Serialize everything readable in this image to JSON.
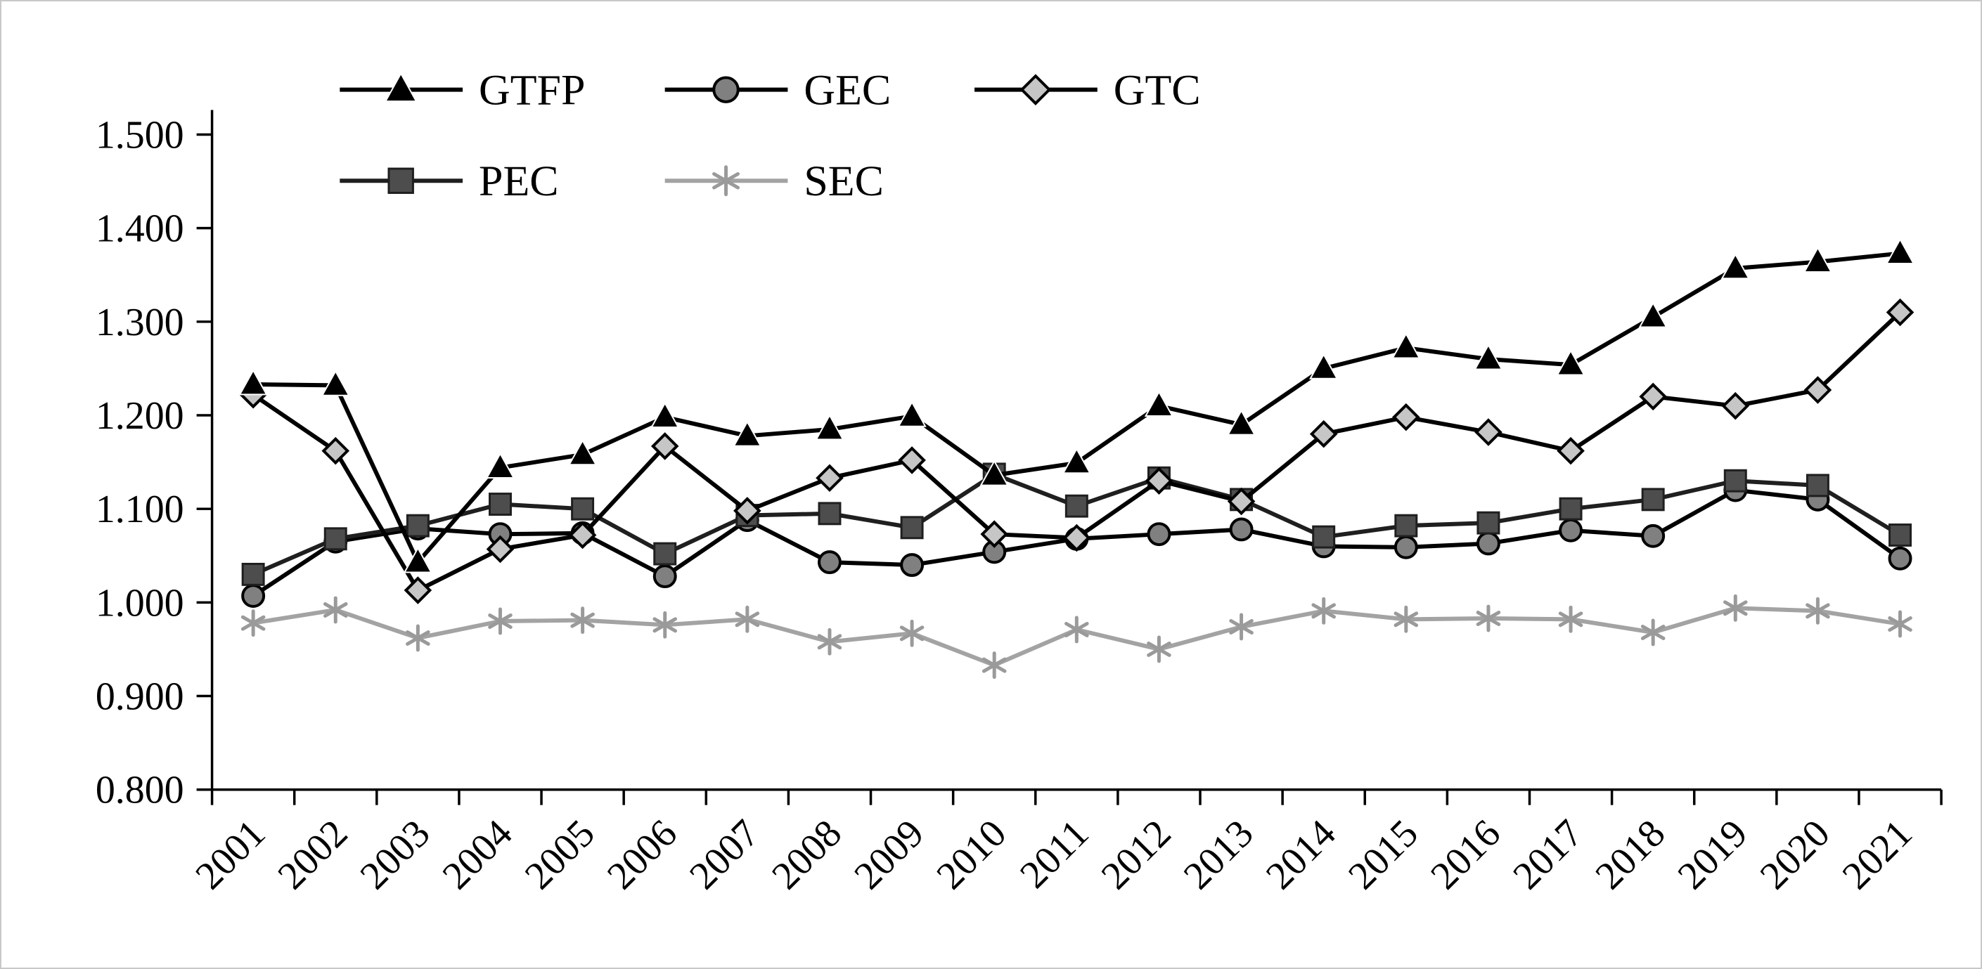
{
  "figure": {
    "title": "",
    "border_color": "#c8c8c8",
    "background_color": "#ffffff"
  },
  "chart_data": {
    "type": "line",
    "title": "",
    "xlabel": "",
    "ylabel": "",
    "grid": false,
    "legend_position": "top",
    "ylim": [
      0.8,
      1.5
    ],
    "ytick_step": 0.1,
    "ytick_labels": [
      "0.800",
      "0.900",
      "1.000",
      "1.100",
      "1.200",
      "1.300",
      "1.400",
      "1.500"
    ],
    "categories": [
      "2001",
      "2002",
      "2003",
      "2004",
      "2005",
      "2006",
      "2007",
      "2008",
      "2009",
      "2010",
      "2011",
      "2012",
      "2013",
      "2014",
      "2015",
      "2016",
      "2017",
      "2018",
      "2019",
      "2020",
      "2021"
    ],
    "series": [
      {
        "name": "GTFP",
        "marker": "triangle",
        "color": "#000000",
        "marker_fill": "#000000",
        "values": [
          1.233,
          1.232,
          1.043,
          1.144,
          1.158,
          1.198,
          1.178,
          1.185,
          1.199,
          1.136,
          1.149,
          1.21,
          1.19,
          1.25,
          1.272,
          1.26,
          1.254,
          1.305,
          1.357,
          1.364,
          1.373
        ]
      },
      {
        "name": "GEC",
        "marker": "circle",
        "color": "#000000",
        "marker_fill": "#808080",
        "values": [
          1.007,
          1.065,
          1.079,
          1.073,
          1.074,
          1.028,
          1.088,
          1.043,
          1.04,
          1.054,
          1.068,
          1.073,
          1.078,
          1.06,
          1.059,
          1.063,
          1.077,
          1.071,
          1.12,
          1.11,
          1.047
        ]
      },
      {
        "name": "GTC",
        "marker": "diamond",
        "color": "#000000",
        "marker_fill": "#c6c6c6",
        "values": [
          1.222,
          1.162,
          1.013,
          1.057,
          1.072,
          1.167,
          1.098,
          1.133,
          1.152,
          1.073,
          1.069,
          1.13,
          1.108,
          1.18,
          1.198,
          1.182,
          1.162,
          1.22,
          1.21,
          1.227,
          1.31
        ]
      },
      {
        "name": "PEC",
        "marker": "square",
        "color": "#1f1f1f",
        "marker_fill": "#4d4d4d",
        "values": [
          1.03,
          1.068,
          1.082,
          1.105,
          1.1,
          1.052,
          1.093,
          1.095,
          1.08,
          1.137,
          1.103,
          1.133,
          1.11,
          1.07,
          1.082,
          1.085,
          1.1,
          1.11,
          1.13,
          1.125,
          1.072
        ]
      },
      {
        "name": "SEC",
        "marker": "asterisk",
        "color": "#a3a3a3",
        "marker_fill": "#9a9a9a",
        "values": [
          0.978,
          0.992,
          0.962,
          0.98,
          0.981,
          0.976,
          0.982,
          0.958,
          0.967,
          0.933,
          0.971,
          0.95,
          0.974,
          0.991,
          0.982,
          0.983,
          0.982,
          0.968,
          0.994,
          0.991,
          0.977
        ]
      }
    ]
  }
}
